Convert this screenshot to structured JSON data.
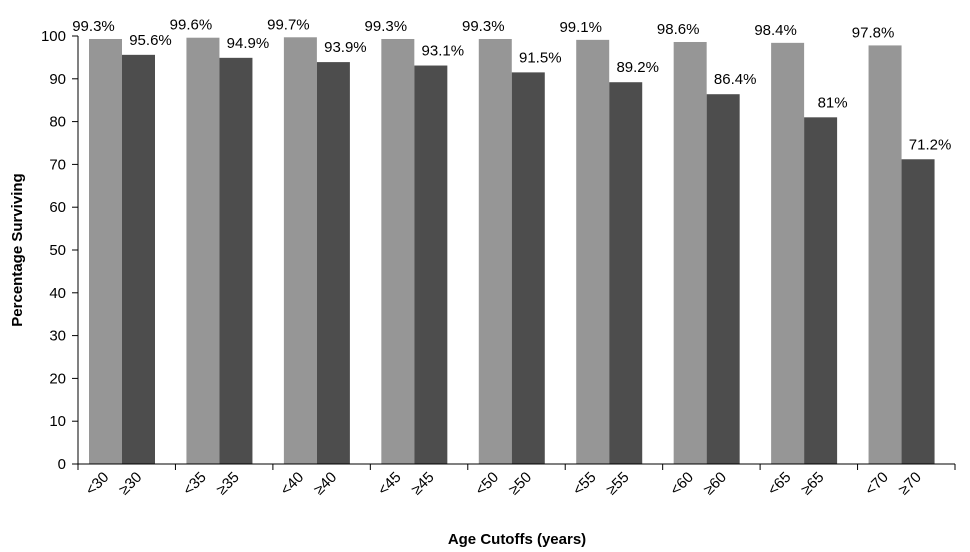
{
  "chart_data": {
    "type": "bar",
    "title": "",
    "xlabel": "Age Cutoffs (years)",
    "ylabel": "Percentage Surviving",
    "ylim": [
      0,
      100
    ],
    "yticks": [
      0,
      10,
      20,
      30,
      40,
      50,
      60,
      70,
      80,
      90,
      100
    ],
    "grid": false,
    "legend": "none",
    "groups": [
      {
        "bars": [
          {
            "category": "<30",
            "value": 99.3,
            "label": "99.3%"
          },
          {
            "category": "≥30",
            "value": 95.6,
            "label": "95.6%"
          }
        ]
      },
      {
        "bars": [
          {
            "category": "<35",
            "value": 99.6,
            "label": "99.6%"
          },
          {
            "category": "≥35",
            "value": 94.9,
            "label": "94.9%"
          }
        ]
      },
      {
        "bars": [
          {
            "category": "<40",
            "value": 99.7,
            "label": "99.7%"
          },
          {
            "category": "≥40",
            "value": 93.9,
            "label": "93.9%"
          }
        ]
      },
      {
        "bars": [
          {
            "category": "<45",
            "value": 99.3,
            "label": "99.3%"
          },
          {
            "category": "≥45",
            "value": 93.1,
            "label": "93.1%"
          }
        ]
      },
      {
        "bars": [
          {
            "category": "<50",
            "value": 99.3,
            "label": "99.3%"
          },
          {
            "category": "≥50",
            "value": 91.5,
            "label": "91.5%"
          }
        ]
      },
      {
        "bars": [
          {
            "category": "<55",
            "value": 99.1,
            "label": "99.1%"
          },
          {
            "category": "≥55",
            "value": 89.2,
            "label": "89.2%"
          }
        ]
      },
      {
        "bars": [
          {
            "category": "<60",
            "value": 98.6,
            "label": "98.6%"
          },
          {
            "category": "≥60",
            "value": 86.4,
            "label": "86.4%"
          }
        ]
      },
      {
        "bars": [
          {
            "category": "<65",
            "value": 98.4,
            "label": "98.4%"
          },
          {
            "category": "≥65",
            "value": 81,
            "label": "81%"
          }
        ]
      },
      {
        "bars": [
          {
            "category": "<70",
            "value": 97.8,
            "label": "97.8%"
          },
          {
            "category": "≥70",
            "value": 71.2,
            "label": "71.2%"
          }
        ]
      }
    ],
    "colors": {
      "below": "#969696",
      "at_or_above": "#4d4d4d",
      "axis": "#000000"
    }
  }
}
